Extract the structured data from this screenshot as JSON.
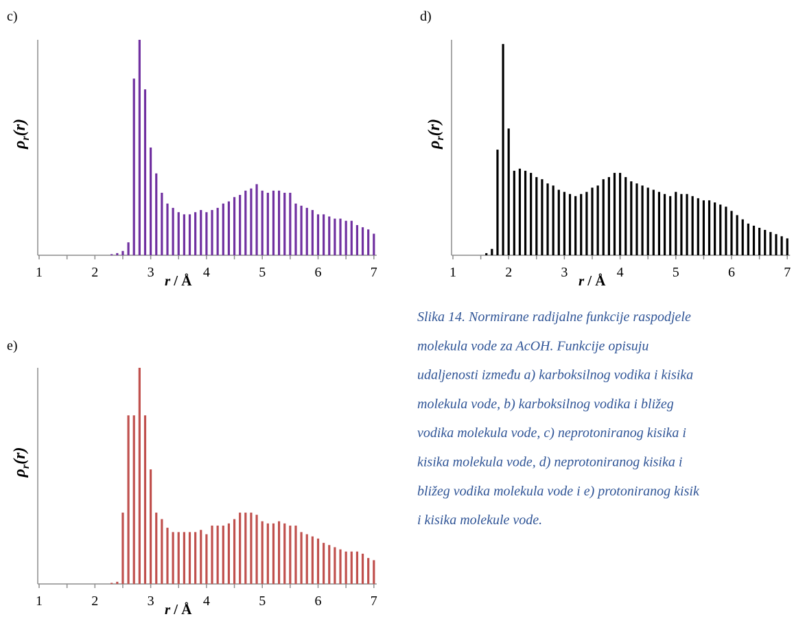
{
  "chart_data": [
    {
      "type": "bar",
      "panel_label": "c)",
      "ylabel": {
        "symbol": "ρ",
        "subscript": "r",
        "argument": "(r)"
      },
      "xlabel": {
        "symbol": "r",
        "rest": "/ Å"
      },
      "x": [
        2.3,
        2.4,
        2.5,
        2.6,
        2.7,
        2.8,
        2.9,
        3.0,
        3.1,
        3.2,
        3.3,
        3.4,
        3.5,
        3.6,
        3.7,
        3.8,
        3.9,
        4.0,
        4.1,
        4.2,
        4.3,
        4.4,
        4.5,
        4.6,
        4.7,
        4.8,
        4.9,
        5.0,
        5.1,
        5.2,
        5.3,
        5.4,
        5.5,
        5.6,
        5.7,
        5.8,
        5.9,
        6.0,
        6.1,
        6.2,
        6.3,
        6.4,
        6.5,
        6.6,
        6.7,
        6.8,
        6.9,
        7.0
      ],
      "values": [
        0.005,
        0.01,
        0.02,
        0.06,
        0.82,
        1.0,
        0.77,
        0.5,
        0.38,
        0.29,
        0.24,
        0.22,
        0.2,
        0.19,
        0.19,
        0.2,
        0.21,
        0.2,
        0.21,
        0.22,
        0.24,
        0.25,
        0.27,
        0.28,
        0.3,
        0.31,
        0.33,
        0.3,
        0.29,
        0.3,
        0.3,
        0.29,
        0.29,
        0.24,
        0.23,
        0.22,
        0.21,
        0.19,
        0.19,
        0.18,
        0.17,
        0.17,
        0.16,
        0.16,
        0.14,
        0.13,
        0.12,
        0.1
      ],
      "color": "#7030a0",
      "xlim": [
        1,
        7.05
      ],
      "ylim": [
        0,
        1
      ],
      "xticks": [
        1,
        2,
        3,
        4,
        5,
        6,
        7
      ],
      "x_minor_ticks": [
        1.5,
        2.5,
        3.5,
        4.5,
        5.5,
        6.5
      ]
    },
    {
      "type": "bar",
      "panel_label": "d)",
      "ylabel": {
        "symbol": "ρ",
        "subscript": "r",
        "argument": "(r)"
      },
      "xlabel": {
        "symbol": "r",
        "rest": "/ Å"
      },
      "x": [
        1.6,
        1.7,
        1.8,
        1.9,
        2.0,
        2.1,
        2.2,
        2.3,
        2.4,
        2.5,
        2.6,
        2.7,
        2.8,
        2.9,
        3.0,
        3.1,
        3.2,
        3.3,
        3.4,
        3.5,
        3.6,
        3.7,
        3.8,
        3.9,
        4.0,
        4.1,
        4.2,
        4.3,
        4.4,
        4.5,
        4.6,
        4.7,
        4.8,
        4.9,
        5.0,
        5.1,
        5.2,
        5.3,
        5.4,
        5.5,
        5.6,
        5.7,
        5.8,
        5.9,
        6.0,
        6.1,
        6.2,
        6.3,
        6.4,
        6.5,
        6.6,
        6.7,
        6.8,
        6.9,
        7.0
      ],
      "values": [
        0.01,
        0.03,
        0.5,
        1.0,
        0.6,
        0.4,
        0.41,
        0.4,
        0.39,
        0.37,
        0.36,
        0.34,
        0.33,
        0.31,
        0.3,
        0.29,
        0.28,
        0.29,
        0.3,
        0.32,
        0.33,
        0.36,
        0.37,
        0.39,
        0.39,
        0.37,
        0.35,
        0.34,
        0.33,
        0.32,
        0.31,
        0.3,
        0.29,
        0.28,
        0.3,
        0.29,
        0.29,
        0.28,
        0.27,
        0.26,
        0.26,
        0.25,
        0.24,
        0.23,
        0.21,
        0.19,
        0.17,
        0.15,
        0.14,
        0.13,
        0.12,
        0.11,
        0.1,
        0.09,
        0.08
      ],
      "color": "#000000",
      "xlim": [
        1,
        7.05
      ],
      "ylim": [
        0,
        1.02
      ],
      "xticks": [
        1,
        2,
        3,
        4,
        5,
        6,
        7
      ],
      "x_minor_ticks": [
        1.5,
        2.5,
        3.5,
        4.5,
        5.5,
        6.5
      ]
    },
    {
      "type": "bar",
      "panel_label": "e)",
      "ylabel": {
        "symbol": "ρ",
        "subscript": "r",
        "argument": "(r)"
      },
      "xlabel": {
        "symbol": "r",
        "rest": "/ Å"
      },
      "x": [
        2.3,
        2.4,
        2.5,
        2.6,
        2.7,
        2.8,
        2.9,
        3.0,
        3.1,
        3.2,
        3.3,
        3.4,
        3.5,
        3.6,
        3.7,
        3.8,
        3.9,
        4.0,
        4.1,
        4.2,
        4.3,
        4.4,
        4.5,
        4.6,
        4.7,
        4.8,
        4.9,
        5.0,
        5.1,
        5.2,
        5.3,
        5.4,
        5.5,
        5.6,
        5.7,
        5.8,
        5.9,
        6.0,
        6.1,
        6.2,
        6.3,
        6.4,
        6.5,
        6.6,
        6.7,
        6.8,
        6.9,
        7.0
      ],
      "values": [
        0.005,
        0.01,
        0.33,
        0.78,
        0.78,
        1.0,
        0.78,
        0.53,
        0.33,
        0.3,
        0.26,
        0.24,
        0.24,
        0.24,
        0.24,
        0.24,
        0.25,
        0.23,
        0.27,
        0.27,
        0.27,
        0.28,
        0.3,
        0.33,
        0.33,
        0.33,
        0.32,
        0.29,
        0.28,
        0.28,
        0.29,
        0.28,
        0.27,
        0.27,
        0.24,
        0.23,
        0.22,
        0.21,
        0.19,
        0.18,
        0.17,
        0.16,
        0.15,
        0.15,
        0.15,
        0.14,
        0.12,
        0.11
      ],
      "color": "#c0504d",
      "xlim": [
        1,
        7.05
      ],
      "ylim": [
        0,
        1
      ],
      "xticks": [
        1,
        2,
        3,
        4,
        5,
        6,
        7
      ],
      "x_minor_ticks": [
        1.5,
        2.5,
        3.5,
        4.5,
        5.5,
        6.5
      ]
    }
  ],
  "caption": {
    "lines": [
      "Slika 14. Normirane radijalne funkcije raspodjele",
      "molekula vode za AcOH. Funkcije opisuju",
      "udaljenosti između a) karboksilnog vodika i kisika",
      "molekula vode, b) karboksilnog vodika i bližeg",
      "vodika molekula vode, c) neprotoniranog kisika i",
      "kisika molekula vode, d) neprotoniranog kisika i",
      "bližeg vodika molekula vode i e) protoniranog kisik",
      "i kisika molekule vode."
    ]
  }
}
